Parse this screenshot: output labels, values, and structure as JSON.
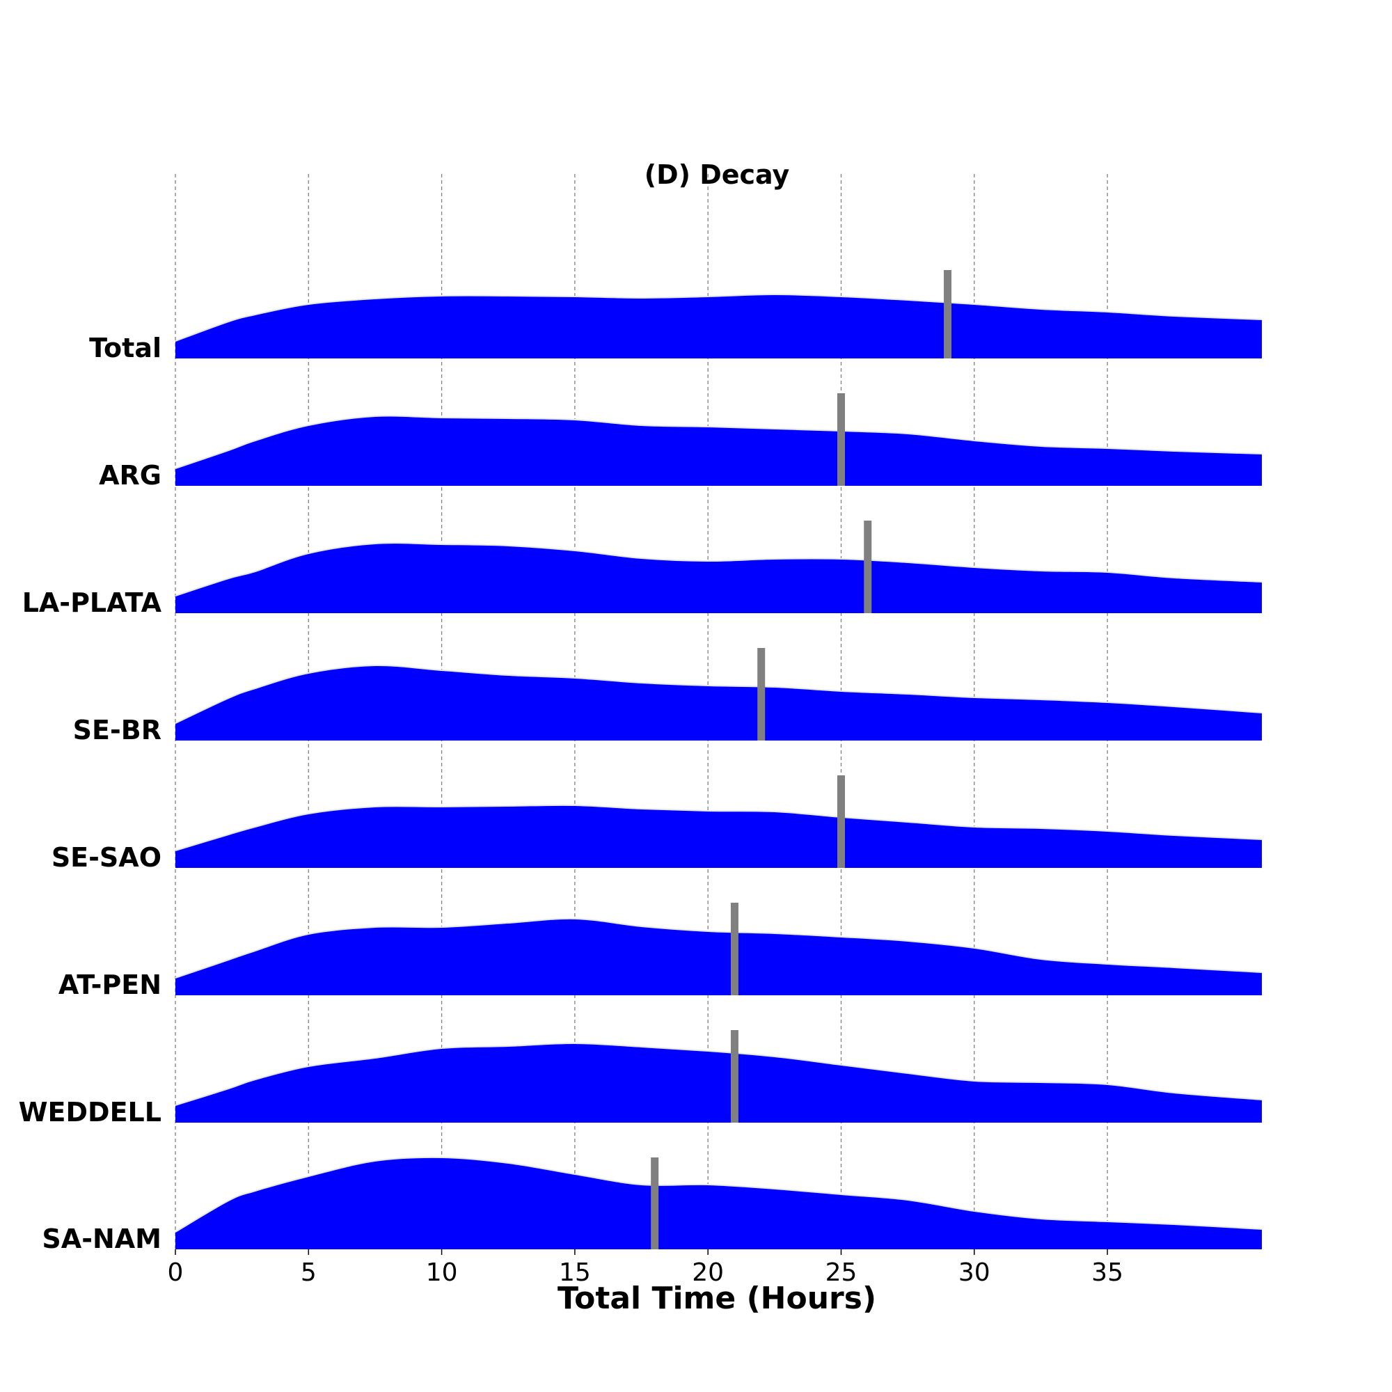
{
  "chart_data": {
    "type": "area",
    "title": "(D) Decay",
    "xlabel": "Total Time (Hours)",
    "ylabel": "",
    "xlim": [
      0,
      40.8
    ],
    "xticks": [
      0,
      5,
      10,
      15,
      20,
      25,
      30,
      35
    ],
    "xtick_labels": [
      "0",
      "5",
      "10",
      "15",
      "20",
      "25",
      "30",
      "35"
    ],
    "grid": "vertical dashed gridlines",
    "fill_color": "#0000ff",
    "edge_color": "#e6e6e6",
    "marker_color": "#808080",
    "x": [
      0,
      2,
      3,
      5,
      7.5,
      10,
      12.5,
      15,
      17.5,
      20,
      22.5,
      25,
      27.5,
      30,
      32.5,
      35,
      37.5,
      40.8
    ],
    "series": [
      {
        "name": "Total",
        "marker": 29,
        "values": [
          0.25,
          0.53,
          0.63,
          0.78,
          0.86,
          0.9,
          0.9,
          0.89,
          0.87,
          0.89,
          0.92,
          0.89,
          0.84,
          0.78,
          0.71,
          0.67,
          0.61,
          0.56
        ]
      },
      {
        "name": "ARG",
        "marker": 25,
        "values": [
          0.25,
          0.51,
          0.65,
          0.87,
          1.0,
          0.98,
          0.97,
          0.95,
          0.87,
          0.85,
          0.82,
          0.79,
          0.75,
          0.65,
          0.57,
          0.54,
          0.5,
          0.46
        ]
      },
      {
        "name": "LA-PLATA",
        "marker": 26,
        "values": [
          0.25,
          0.5,
          0.6,
          0.86,
          1.0,
          0.99,
          0.97,
          0.9,
          0.79,
          0.75,
          0.78,
          0.78,
          0.73,
          0.66,
          0.61,
          0.59,
          0.51,
          0.45
        ]
      },
      {
        "name": "SE-BR",
        "marker": 22,
        "values": [
          0.25,
          0.61,
          0.75,
          0.97,
          1.08,
          1.01,
          0.94,
          0.9,
          0.83,
          0.79,
          0.77,
          0.71,
          0.67,
          0.62,
          0.59,
          0.55,
          0.49,
          0.4
        ]
      },
      {
        "name": "SE-SAO",
        "marker": 25,
        "values": [
          0.25,
          0.48,
          0.59,
          0.78,
          0.88,
          0.88,
          0.89,
          0.9,
          0.85,
          0.82,
          0.81,
          0.73,
          0.66,
          0.59,
          0.57,
          0.53,
          0.47,
          0.41
        ]
      },
      {
        "name": "AT-PEN",
        "marker": 21,
        "values": [
          0.25,
          0.51,
          0.64,
          0.88,
          0.98,
          0.98,
          1.04,
          1.1,
          0.99,
          0.92,
          0.89,
          0.84,
          0.78,
          0.68,
          0.52,
          0.45,
          0.4,
          0.33
        ]
      },
      {
        "name": "WEDDELL",
        "marker": 21,
        "values": [
          0.25,
          0.49,
          0.62,
          0.81,
          0.93,
          1.07,
          1.1,
          1.14,
          1.09,
          1.03,
          0.95,
          0.83,
          0.71,
          0.6,
          0.58,
          0.55,
          0.43,
          0.33
        ]
      },
      {
        "name": "SA-NAM",
        "marker": 18,
        "values": [
          0.25,
          0.7,
          0.84,
          1.05,
          1.27,
          1.32,
          1.24,
          1.08,
          0.93,
          0.93,
          0.87,
          0.79,
          0.71,
          0.55,
          0.44,
          0.4,
          0.36,
          0.29
        ]
      }
    ]
  }
}
